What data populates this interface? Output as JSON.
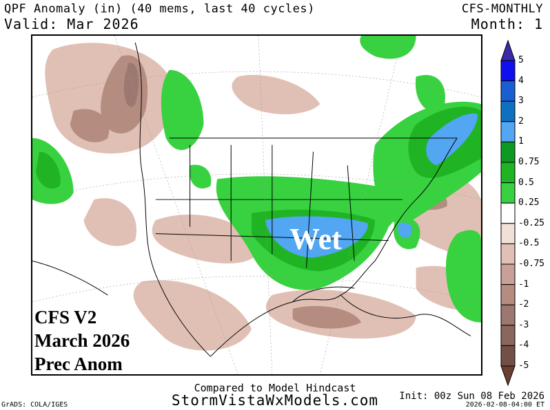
{
  "header": {
    "title": "QPF Anomaly (in) (40 mems, last 40 cycles)",
    "valid": "Valid: Mar 2026",
    "model": "CFS-MONTHLY",
    "month": "Month: 1"
  },
  "map": {
    "overlay_lines": [
      "CFS V2",
      "March 2026",
      "Prec Anom"
    ],
    "wet_label": "Wet"
  },
  "colorbar": {
    "labels": [
      "5",
      "4",
      "3",
      "2",
      "1",
      "0.75",
      "0.5",
      "0.25",
      "-0.25",
      "-0.5",
      "-0.75",
      "-1",
      "-2",
      "-3",
      "-4",
      "-5"
    ],
    "colors": [
      "#1010ee",
      "#1a5fd2",
      "#1070c0",
      "#52a6f2",
      "#0e9a22",
      "#20b424",
      "#38d140",
      "#ffffff",
      "#f0e0d8",
      "#e0c0b4",
      "#c8a095",
      "#b48c80",
      "#9c7870",
      "#8a665c",
      "#744f47"
    ],
    "top_arrow_color": "#3a2aa8",
    "bottom_arrow_color": "#6a4030"
  },
  "footer": {
    "compared": "Compared to Model Hindcast",
    "site": "StormVistaWxModels.com",
    "init": "Init: 00z Sun 08 Feb 2026",
    "timestamp": "2026-02-08-04:00 ET",
    "grads": "GrADS: COLA/IGES"
  }
}
